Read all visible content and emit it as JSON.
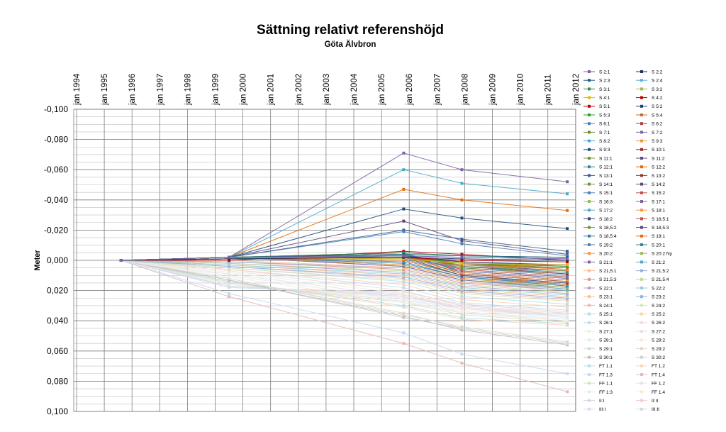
{
  "chart_data": {
    "type": "line",
    "title": "Sättning relativt referenshöjd",
    "subtitle": "Göta Älvbron",
    "ylabel": "Meter",
    "y_reversed": true,
    "ylim": [
      -0.1,
      0.1
    ],
    "y_ticks": [
      "-0,100",
      "-0,080",
      "-0,060",
      "-0,040",
      "-0,020",
      "0,000",
      "0,020",
      "0,040",
      "0,060",
      "0,080",
      "0,100"
    ],
    "x_ticks": [
      "jan 1994",
      "jan 1995",
      "jan 1996",
      "jan 1997",
      "jan 1998",
      "jan 1999",
      "jan 2000",
      "jan 2001",
      "jan 2002",
      "jan 2003",
      "jan 2004",
      "jan 2005",
      "jan 2006",
      "jan 2007",
      "jan 2008",
      "jan 2009",
      "jan 2010",
      "jan 2011",
      "jan 2012"
    ],
    "x_dates": [
      1995.6,
      1999.5,
      2005.8,
      2007.9,
      2011.7
    ],
    "legend_position": "right",
    "grid": true,
    "series": [
      {
        "name": "S  2:1",
        "color": "#7f5fa8",
        "values": [
          0,
          -0.002,
          -0.003,
          -0.002,
          -0.001
        ]
      },
      {
        "name": "S  2:2",
        "color": "#1f2e5e",
        "values": [
          0,
          -0.001,
          -0.002,
          -0.001,
          0.0
        ]
      },
      {
        "name": "S  2:3",
        "color": "#1f5f8f",
        "values": [
          0,
          -0.002,
          -0.004,
          -0.003,
          -0.002
        ]
      },
      {
        "name": "S  2:4",
        "color": "#5fb3d6",
        "values": [
          0,
          -0.001,
          -0.003,
          -0.002,
          -0.001
        ]
      },
      {
        "name": "S  3:1",
        "color": "#2e8b57",
        "values": [
          0,
          -0.002,
          -0.005,
          -0.003,
          -0.002
        ]
      },
      {
        "name": "S  3:2",
        "color": "#9bbb59",
        "values": [
          0,
          -0.001,
          -0.004,
          -0.003,
          -0.002
        ]
      },
      {
        "name": "S  4:1",
        "color": "#e6b800",
        "values": [
          0,
          -0.002,
          -0.001,
          0.002,
          0.003
        ]
      },
      {
        "name": "S  4:2",
        "color": "#c00000",
        "values": [
          0,
          -0.001,
          -0.002,
          0.0,
          0.001
        ]
      },
      {
        "name": "S  5:1",
        "color": "#c00000",
        "values": [
          0,
          0.0,
          -0.006,
          -0.004,
          0.0
        ]
      },
      {
        "name": "S  5:2",
        "color": "#1f3f7f",
        "values": [
          0,
          -0.002,
          -0.003,
          0.001,
          0.003
        ]
      },
      {
        "name": "S  5:3",
        "color": "#2ca02c",
        "values": [
          0,
          -0.002,
          -0.003,
          0.002,
          0.004
        ]
      },
      {
        "name": "S  5:4",
        "color": "#c07030",
        "values": [
          0,
          -0.001,
          -0.002,
          0.003,
          0.005
        ]
      },
      {
        "name": "S  6:1",
        "color": "#4f81bd",
        "values": [
          0,
          -0.002,
          -0.019,
          -0.011,
          -0.003
        ]
      },
      {
        "name": "S  6:2",
        "color": "#b04050",
        "values": [
          0,
          -0.001,
          -0.002,
          0.001,
          0.004
        ]
      },
      {
        "name": "S  7:1",
        "color": "#6b8e23",
        "values": [
          0,
          -0.002,
          -0.002,
          0.002,
          0.005
        ]
      },
      {
        "name": "S  7:2",
        "color": "#8064a2",
        "values": [
          0,
          -0.002,
          -0.071,
          -0.06,
          -0.052
        ]
      },
      {
        "name": "S  8:2",
        "color": "#4bacc6",
        "values": [
          0,
          -0.002,
          -0.06,
          -0.051,
          -0.044
        ]
      },
      {
        "name": "S  9:3",
        "color": "#f79646",
        "values": [
          0,
          -0.002,
          -0.003,
          0.003,
          0.006
        ]
      },
      {
        "name": "S  9:3",
        "color": "#1f4e79",
        "values": [
          0,
          -0.002,
          -0.034,
          -0.028,
          -0.021
        ]
      },
      {
        "name": "S  10:1",
        "color": "#a52a2a",
        "values": [
          0,
          -0.001,
          -0.002,
          0.002,
          0.006
        ]
      },
      {
        "name": "S  11:1",
        "color": "#77933c",
        "values": [
          0,
          -0.002,
          -0.003,
          0.004,
          0.007
        ]
      },
      {
        "name": "S  11:2",
        "color": "#604a7b",
        "values": [
          0,
          -0.001,
          -0.002,
          0.003,
          0.007
        ]
      },
      {
        "name": "S  12:1",
        "color": "#31859c",
        "values": [
          0,
          -0.002,
          -0.004,
          0.004,
          0.008
        ]
      },
      {
        "name": "S  12:2",
        "color": "#e46c0a",
        "values": [
          0,
          -0.002,
          -0.047,
          -0.04,
          -0.033
        ]
      },
      {
        "name": "S  13:1",
        "color": "#376092",
        "values": [
          0,
          -0.002,
          -0.02,
          -0.014,
          -0.006
        ]
      },
      {
        "name": "S  13:2",
        "color": "#953735",
        "values": [
          0,
          -0.001,
          -0.003,
          0.004,
          0.009
        ]
      },
      {
        "name": "S  14:1",
        "color": "#76923c",
        "values": [
          0,
          -0.002,
          -0.004,
          0.005,
          0.009
        ]
      },
      {
        "name": "S  14:2",
        "color": "#5f497a",
        "values": [
          0,
          -0.002,
          -0.026,
          -0.013,
          -0.004
        ]
      },
      {
        "name": "S  15:1",
        "color": "#4f81bd",
        "values": [
          0,
          -0.002,
          -0.002,
          0.005,
          0.01
        ]
      },
      {
        "name": "S  15:2",
        "color": "#c0504d",
        "values": [
          0,
          -0.001,
          -0.003,
          0.006,
          0.011
        ]
      },
      {
        "name": "S  16:3",
        "color": "#9bbb59",
        "values": [
          0,
          -0.002,
          -0.005,
          0.006,
          0.011
        ]
      },
      {
        "name": "S  17:1",
        "color": "#8064a2",
        "values": [
          0,
          -0.002,
          -0.004,
          0.007,
          0.012
        ]
      },
      {
        "name": "S  17:2",
        "color": "#4bacc6",
        "values": [
          0,
          -0.002,
          -0.003,
          0.007,
          0.012
        ]
      },
      {
        "name": "S  18:1",
        "color": "#f79646",
        "values": [
          0,
          -0.001,
          -0.002,
          0.008,
          0.013
        ]
      },
      {
        "name": "S  18:2",
        "color": "#2c4d75",
        "values": [
          0,
          -0.002,
          -0.005,
          0.008,
          0.013
        ]
      },
      {
        "name": "S  18,5:1",
        "color": "#c0504d",
        "values": [
          0,
          -0.002,
          -0.004,
          0.009,
          0.014
        ]
      },
      {
        "name": "S  18,5:2",
        "color": "#77933c",
        "values": [
          0,
          -0.002,
          -0.003,
          0.009,
          0.014
        ]
      },
      {
        "name": "S  18,5:3",
        "color": "#5f497a",
        "values": [
          0,
          -0.002,
          -0.002,
          0.01,
          0.015
        ]
      },
      {
        "name": "S  18,5:4",
        "color": "#31859c",
        "values": [
          0,
          -0.002,
          -0.001,
          0.01,
          0.015
        ]
      },
      {
        "name": "S  19:1",
        "color": "#e46c0a",
        "values": [
          0,
          -0.002,
          0.0,
          0.01,
          0.016
        ]
      },
      {
        "name": "S  19:2",
        "color": "#4f81bd",
        "values": [
          0,
          -0.002,
          0.001,
          0.011,
          0.016
        ]
      },
      {
        "name": "S  20:1",
        "color": "#31859c",
        "values": [
          0,
          -0.002,
          0.002,
          0.011,
          0.017
        ]
      },
      {
        "name": "S  20:2",
        "color": "#f79646",
        "values": [
          0,
          -0.002,
          0.003,
          0.012,
          0.017
        ]
      },
      {
        "name": "S  20:2 Ny",
        "color": "#9bbb59",
        "values": [
          0,
          -0.002,
          0.003,
          0.012,
          0.018
        ]
      },
      {
        "name": "S  21:1",
        "color": "#8064a2",
        "values": [
          0,
          -0.002,
          0.004,
          0.013,
          0.018
        ]
      },
      {
        "name": "S  21:2",
        "color": "#4bacc6",
        "values": [
          0,
          -0.002,
          0.004,
          0.013,
          0.019
        ]
      },
      {
        "name": "S  21,5:1",
        "color": "#fabf8f",
        "values": [
          0,
          0.0,
          0.005,
          0.014,
          0.019
        ]
      },
      {
        "name": "S  21,5:2",
        "color": "#95b3d7",
        "values": [
          0,
          0.001,
          0.005,
          0.014,
          0.02
        ]
      },
      {
        "name": "S  21,5:3",
        "color": "#d99694",
        "values": [
          0,
          0.001,
          0.006,
          0.015,
          0.02
        ]
      },
      {
        "name": "S  21,5:4",
        "color": "#c3d69b",
        "values": [
          0,
          0.002,
          0.007,
          0.016,
          0.021
        ]
      },
      {
        "name": "S  22:1",
        "color": "#b3a2c7",
        "values": [
          0,
          0.002,
          0.008,
          0.017,
          0.022
        ]
      },
      {
        "name": "S  22:2",
        "color": "#92cddc",
        "values": [
          0,
          0.003,
          0.009,
          0.018,
          0.023
        ]
      },
      {
        "name": "S  23:1",
        "color": "#fac090",
        "values": [
          0,
          0.003,
          0.01,
          0.019,
          0.024
        ]
      },
      {
        "name": "S  23:2",
        "color": "#8eb4e3",
        "values": [
          0,
          0.004,
          0.011,
          0.02,
          0.025
        ]
      },
      {
        "name": "S  24:1",
        "color": "#e6b9b8",
        "values": [
          0,
          0.004,
          0.012,
          0.021,
          0.026
        ]
      },
      {
        "name": "S  24:2",
        "color": "#d7e4bd",
        "values": [
          0,
          0.005,
          0.013,
          0.022,
          0.027
        ]
      },
      {
        "name": "S  25:1",
        "color": "#b7dee8",
        "values": [
          0,
          0.005,
          0.014,
          0.024,
          0.029
        ]
      },
      {
        "name": "S  25:2",
        "color": "#fcd5b5",
        "values": [
          0,
          0.006,
          0.016,
          0.026,
          0.031
        ]
      },
      {
        "name": "S  26:1",
        "color": "#c6d9f1",
        "values": [
          0,
          0.006,
          0.018,
          0.028,
          0.033
        ]
      },
      {
        "name": "S  26:2",
        "color": "#f2dcdb",
        "values": [
          0,
          0.007,
          0.02,
          0.03,
          0.035
        ]
      },
      {
        "name": "S  27:1",
        "color": "#ebf1de",
        "values": [
          0,
          0.008,
          0.022,
          0.03,
          0.036
        ]
      },
      {
        "name": "S  27:2",
        "color": "#e5e0ec",
        "values": [
          0,
          0.009,
          0.024,
          0.031,
          0.037
        ]
      },
      {
        "name": "S  28:1",
        "color": "#dbeef4",
        "values": [
          0,
          0.01,
          0.026,
          0.032,
          0.038
        ]
      },
      {
        "name": "S  28:2",
        "color": "#fde9d9",
        "values": [
          0,
          0.011,
          0.028,
          0.034,
          0.04
        ]
      },
      {
        "name": "S  29:1",
        "color": "#d9d9d9",
        "values": [
          0,
          0.012,
          0.035,
          0.045,
          0.055
        ]
      },
      {
        "name": "S  29:2",
        "color": "#ddd9c4",
        "values": [
          0,
          0.012,
          0.036,
          0.044,
          0.054
        ]
      },
      {
        "name": "S  30:1",
        "color": "#bfbfbf",
        "values": [
          0,
          0.013,
          0.037,
          0.046,
          0.056
        ]
      },
      {
        "name": "S  30:2",
        "color": "#d0cece",
        "values": [
          0,
          0.013,
          0.038,
          0.045,
          0.055
        ]
      },
      {
        "name": "FT  1.1",
        "color": "#b7dee8",
        "values": [
          0,
          0.014,
          0.03,
          0.038,
          0.042
        ]
      },
      {
        "name": "FT  1.2",
        "color": "#fcd5b5",
        "values": [
          0,
          0.014,
          0.031,
          0.039,
          0.043
        ]
      },
      {
        "name": "FT  1.3",
        "color": "#c6d9f1",
        "values": [
          0,
          0.022,
          0.048,
          0.062,
          0.075
        ]
      },
      {
        "name": "FT  1.4",
        "color": "#e6b9b8",
        "values": [
          0,
          0.024,
          0.055,
          0.068,
          0.087
        ]
      },
      {
        "name": "FF  1.1",
        "color": "#d7e4bd",
        "values": [
          0,
          0.015,
          0.028,
          0.036,
          0.041
        ]
      },
      {
        "name": "FF  1.2",
        "color": "#e5e0ec",
        "values": [
          0,
          0.015,
          0.027,
          0.035,
          0.04
        ]
      },
      {
        "name": "FF  1:3",
        "color": "#dbeef4",
        "values": [
          0,
          0.016,
          0.026,
          0.034,
          0.039
        ]
      },
      {
        "name": "FF  1.4",
        "color": "#fde9d9",
        "values": [
          0,
          0.016,
          0.025,
          0.033,
          0.038
        ]
      },
      {
        "name": "II:I",
        "color": "#d9d2e9",
        "values": [
          0,
          0.017,
          0.024,
          0.032,
          0.037
        ]
      },
      {
        "name": "II:II",
        "color": "#f4cccc",
        "values": [
          0,
          0.017,
          0.023,
          0.031,
          0.036
        ]
      },
      {
        "name": "III:I",
        "color": "#cfe2f3",
        "values": [
          0,
          0.018,
          0.022,
          0.03,
          0.035
        ]
      },
      {
        "name": "III:II",
        "color": "#d9d9d9",
        "values": [
          0,
          0.018,
          0.021,
          0.029,
          0.034
        ]
      }
    ]
  }
}
